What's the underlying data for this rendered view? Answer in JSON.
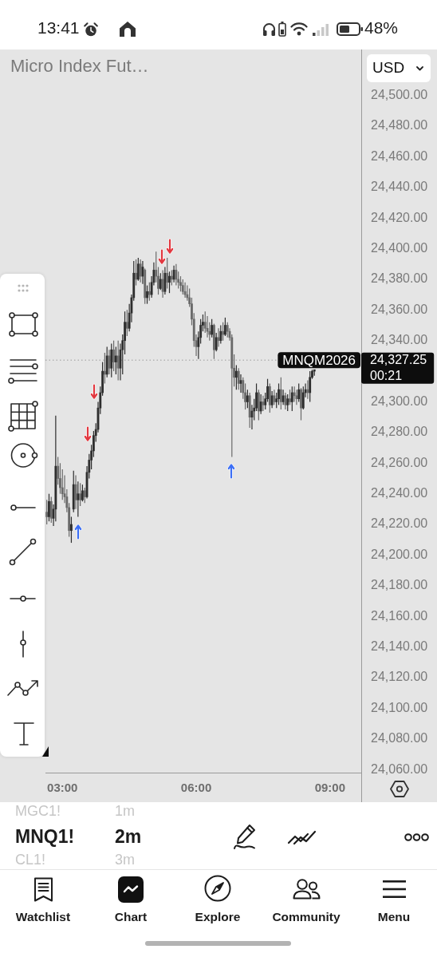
{
  "chart_data": {
    "type": "candlestick",
    "title": "Micro Index Fut…",
    "x": [
      2.65,
      2.7,
      2.75,
      2.8,
      2.85,
      2.9,
      2.95,
      3,
      3.05,
      3.1,
      3.15,
      3.2,
      3.25,
      3.3,
      3.35,
      3.4,
      3.45,
      3.5,
      3.55,
      3.6,
      3.65,
      3.7,
      3.75,
      3.8,
      3.85,
      3.9,
      3.95,
      4,
      4.05,
      4.1,
      4.15,
      4.2,
      4.25,
      4.3,
      4.35,
      4.4,
      4.45,
      4.5,
      4.55,
      4.6,
      4.65,
      4.7,
      4.75,
      4.8,
      4.85,
      4.9,
      4.95,
      5,
      5.05,
      5.1,
      5.15,
      5.2,
      5.25,
      5.3,
      5.35,
      5.4,
      5.45,
      5.5,
      5.55,
      5.6,
      5.65,
      5.7,
      5.75,
      5.8,
      5.85,
      5.9,
      5.95,
      6,
      6.05,
      6.1,
      6.15,
      6.2,
      6.25,
      6.3,
      6.35,
      6.4,
      6.45,
      6.5,
      6.55,
      6.6,
      6.65,
      6.7,
      6.75,
      6.8,
      6.85,
      6.9,
      6.95,
      7,
      7.05,
      7.1,
      7.15,
      7.2,
      7.25,
      7.3,
      7.35,
      7.4,
      7.45,
      7.5,
      7.55,
      7.6,
      7.65,
      7.7,
      7.75,
      7.8,
      7.85,
      7.9,
      7.95,
      8,
      8.05,
      8.1,
      8.15,
      8.2,
      8.25,
      8.3,
      8.35,
      8.4,
      8.45,
      8.5,
      8.55,
      8.6,
      8.65
    ],
    "ohlc": [
      [
        24228,
        24236,
        24220,
        24225
      ],
      [
        24225,
        24240,
        24222,
        24235
      ],
      [
        24235,
        24238,
        24221,
        24224
      ],
      [
        24224,
        24233,
        24219,
        24230
      ],
      [
        24230,
        24291,
        24222,
        24258
      ],
      [
        24258,
        24264,
        24246,
        24250
      ],
      [
        24250,
        24260,
        24240,
        24244
      ],
      [
        24244,
        24256,
        24236,
        24240
      ],
      [
        24240,
        24252,
        24234,
        24238
      ],
      [
        24238,
        24243,
        24228,
        24231
      ],
      [
        24231,
        24234,
        24212,
        24216
      ],
      [
        24216,
        24225,
        24208,
        24220
      ],
      [
        24230,
        24255,
        24228,
        24246
      ],
      [
        24246,
        24252,
        24230,
        24236
      ],
      [
        24236,
        24248,
        24225,
        24240
      ],
      [
        24240,
        24247,
        24232,
        24236
      ],
      [
        24236,
        24246,
        24235,
        24242
      ],
      [
        24242,
        24244,
        24234,
        24238
      ],
      [
        24238,
        24258,
        24237,
        24254
      ],
      [
        24254,
        24266,
        24250,
        24262
      ],
      [
        24262,
        24272,
        24256,
        24268
      ],
      [
        24268,
        24281,
        24264,
        24278
      ],
      [
        24278,
        24286,
        24274,
        24282
      ],
      [
        24282,
        24300,
        24280,
        24296
      ],
      [
        24296,
        24310,
        24292,
        24306
      ],
      [
        24306,
        24326,
        24304,
        24320
      ],
      [
        24320,
        24332,
        24312,
        24318
      ],
      [
        24318,
        24336,
        24316,
        24330
      ],
      [
        24330,
        24334,
        24318,
        24322
      ],
      [
        24322,
        24338,
        24316,
        24334
      ],
      [
        24334,
        24340,
        24320,
        24326
      ],
      [
        24326,
        24336,
        24318,
        24330
      ],
      [
        24330,
        24340,
        24314,
        24322
      ],
      [
        24322,
        24338,
        24314,
        24334
      ],
      [
        24334,
        24344,
        24318,
        24340
      ],
      [
        24340,
        24359,
        24331,
        24352
      ],
      [
        24352,
        24360,
        24343,
        24348
      ],
      [
        24348,
        24364,
        24346,
        24358
      ],
      [
        24358,
        24370,
        24352,
        24368
      ],
      [
        24368,
        24392,
        24366,
        24384
      ],
      [
        24384,
        24393,
        24376,
        24380
      ],
      [
        24380,
        24394,
        24379,
        24390
      ],
      [
        24390,
        24393,
        24378,
        24382
      ],
      [
        24382,
        24392,
        24377,
        24388
      ],
      [
        24386,
        24387,
        24364,
        24368
      ],
      [
        24368,
        24376,
        24364,
        24372
      ],
      [
        24372,
        24378,
        24366,
        24370
      ],
      [
        24370,
        24382,
        24368,
        24378
      ],
      [
        24378,
        24391,
        24376,
        24386
      ],
      [
        24386,
        24398,
        24378,
        24382
      ],
      [
        24382,
        24388,
        24370,
        24374
      ],
      [
        24374,
        24384,
        24373,
        24380
      ],
      [
        24380,
        24386,
        24368,
        24372
      ],
      [
        24372,
        24388,
        24370,
        24384
      ],
      [
        24384,
        24394,
        24374,
        24378
      ],
      [
        24378,
        24385,
        24371,
        24382
      ],
      [
        24382,
        24386,
        24376,
        24380
      ],
      [
        24380,
        24389,
        24378,
        24386
      ],
      [
        24386,
        24390,
        24376,
        24380
      ],
      [
        24380,
        24385,
        24374,
        24378
      ],
      [
        24378,
        24382,
        24372,
        24376
      ],
      [
        24376,
        24380,
        24370,
        24372
      ],
      [
        24372,
        24378,
        24368,
        24370
      ],
      [
        24370,
        24376,
        24366,
        24368
      ],
      [
        24368,
        24374,
        24362,
        24364
      ],
      [
        24364,
        24368,
        24350,
        24354
      ],
      [
        24354,
        24358,
        24336,
        24340
      ],
      [
        24340,
        24344,
        24330,
        24336
      ],
      [
        24336,
        24346,
        24328,
        24342
      ],
      [
        24342,
        24354,
        24338,
        24350
      ],
      [
        24350,
        24357,
        24346,
        24352
      ],
      [
        24352,
        24359,
        24345,
        24348
      ],
      [
        24348,
        24356,
        24342,
        24346
      ],
      [
        24346,
        24352,
        24340,
        24344
      ],
      [
        24344,
        24354,
        24342,
        24350
      ],
      [
        24350,
        24351,
        24328,
        24334
      ],
      [
        24334,
        24345,
        24333,
        24342
      ],
      [
        24342,
        24348,
        24336,
        24340
      ],
      [
        24340,
        24350,
        24338,
        24346
      ],
      [
        24346,
        24352,
        24340,
        24344
      ],
      [
        24344,
        24355,
        24343,
        24350
      ],
      [
        24350,
        24352,
        24342,
        24346
      ],
      [
        24346,
        24348,
        24340,
        24342
      ],
      [
        24342,
        24344,
        24264,
        24322
      ],
      [
        24322,
        24331,
        24310,
        24316
      ],
      [
        24316,
        24324,
        24308,
        24320
      ],
      [
        24320,
        24322,
        24308,
        24312
      ],
      [
        24312,
        24318,
        24306,
        24314
      ],
      [
        24314,
        24316,
        24302,
        24306
      ],
      [
        24306,
        24312,
        24295,
        24300
      ],
      [
        24300,
        24308,
        24296,
        24304
      ],
      [
        24304,
        24306,
        24283,
        24290
      ],
      [
        24290,
        24298,
        24282,
        24294
      ],
      [
        24294,
        24302,
        24288,
        24296
      ],
      [
        24296,
        24312,
        24294,
        24306
      ],
      [
        24306,
        24308,
        24288,
        24294
      ],
      [
        24294,
        24305,
        24292,
        24300
      ],
      [
        24300,
        24304,
        24294,
        24298
      ],
      [
        24298,
        24306,
        24295,
        24302
      ],
      [
        24302,
        24315,
        24300,
        24310
      ],
      [
        24310,
        24312,
        24293,
        24298
      ],
      [
        24298,
        24307,
        24296,
        24304
      ],
      [
        24304,
        24308,
        24298,
        24300
      ],
      [
        24300,
        24306,
        24296,
        24302
      ],
      [
        24302,
        24312,
        24298,
        24308
      ],
      [
        24308,
        24316,
        24295,
        24300
      ],
      [
        24300,
        24308,
        24298,
        24304
      ],
      [
        24304,
        24306,
        24295,
        24298
      ],
      [
        24298,
        24305,
        24294,
        24302
      ],
      [
        24302,
        24308,
        24298,
        24300
      ],
      [
        24300,
        24310,
        24294,
        24306
      ],
      [
        24306,
        24310,
        24300,
        24304
      ],
      [
        24304,
        24308,
        24298,
        24302
      ],
      [
        24302,
        24312,
        24300,
        24308
      ],
      [
        24308,
        24309,
        24288,
        24296
      ],
      [
        24296,
        24310,
        24295,
        24306
      ],
      [
        24306,
        24312,
        24303,
        24308
      ],
      [
        24308,
        24314,
        24302,
        24306
      ],
      [
        24306,
        24320,
        24300,
        24316
      ],
      [
        24316,
        24321,
        24315,
        24320
      ],
      [
        24320,
        24321,
        24317,
        24321
      ]
    ],
    "colors": [
      "#6a6a6a",
      "#2e2e2e",
      "#6a6a6a",
      "#2e2e2e",
      "#2e2e2e",
      "#6a6a6a",
      "#6a6a6a",
      "#6a6a6a",
      "#6a6a6a",
      "#6a6a6a",
      "#6a6a6a",
      "#2e2e2e",
      "#2e2e2e",
      "#6a6a6a",
      "#2e2e2e",
      "#6a6a6a",
      "#2e2e2e",
      "#6a6a6a",
      "#2e2e2e",
      "#2e2e2e",
      "#2e2e2e",
      "#2e2e2e",
      "#2e2e2e",
      "#2e2e2e",
      "#2e2e2e",
      "#2e2e2e",
      "#6a6a6a",
      "#2e2e2e",
      "#6a6a6a",
      "#2e2e2e",
      "#6a6a6a",
      "#2e2e2e",
      "#6a6a6a",
      "#2e2e2e",
      "#2e2e2e",
      "#2e2e2e",
      "#6a6a6a",
      "#2e2e2e",
      "#2e2e2e",
      "#2e2e2e",
      "#6a6a6a",
      "#2e2e2e",
      "#6a6a6a",
      "#2e2e2e",
      "#6a6a6a",
      "#2e2e2e",
      "#6a6a6a",
      "#2e2e2e",
      "#2e2e2e",
      "#6a6a6a",
      "#6a6a6a",
      "#2e2e2e",
      "#6a6a6a",
      "#2e2e2e",
      "#6a6a6a",
      "#2e2e2e",
      "#6a6a6a",
      "#2e2e2e",
      "#6a6a6a",
      "#6a6a6a",
      "#6a6a6a",
      "#6a6a6a",
      "#6a6a6a",
      "#6a6a6a",
      "#6a6a6a",
      "#6a6a6a",
      "#6a6a6a",
      "#6a6a6a",
      "#2e2e2e",
      "#2e2e2e",
      "#2e2e2e",
      "#6a6a6a",
      "#6a6a6a",
      "#6a6a6a",
      "#2e2e2e",
      "#6a6a6a",
      "#2e2e2e",
      "#6a6a6a",
      "#2e2e2e",
      "#6a6a6a",
      "#2e2e2e",
      "#6a6a6a",
      "#6a6a6a",
      "#6a6a6a",
      "#6a6a6a",
      "#2e2e2e",
      "#6a6a6a",
      "#2e2e2e",
      "#6a6a6a",
      "#6a6a6a",
      "#2e2e2e",
      "#6a6a6a",
      "#2e2e2e",
      "#2e2e2e",
      "#2e2e2e",
      "#6a6a6a",
      "#2e2e2e",
      "#6a6a6a",
      "#2e2e2e",
      "#2e2e2e",
      "#6a6a6a",
      "#2e2e2e",
      "#6a6a6a",
      "#2e2e2e",
      "#2e2e2e",
      "#6a6a6a",
      "#2e2e2e",
      "#6a6a6a",
      "#2e2e2e",
      "#6a6a6a",
      "#2e2e2e",
      "#6a6a6a",
      "#6a6a6a",
      "#2e2e2e",
      "#6a6a6a",
      "#2e2e2e",
      "#2e2e2e",
      "#6a6a6a",
      "#2e2e2e",
      "#2e2e2e",
      "#2e2e2e"
    ],
    "xlim": [
      2.62,
      9.7
    ],
    "xticks": [
      {
        "value": 3,
        "label": "03:00"
      },
      {
        "value": 6,
        "label": "06:00"
      },
      {
        "value": 9,
        "label": "09:00"
      }
    ],
    "ylim": [
      24058,
      24530
    ],
    "yticks": [
      {
        "value": 24060,
        "label": "24,060.00"
      },
      {
        "value": 24080,
        "label": "24,080.00"
      },
      {
        "value": 24100,
        "label": "24,100.00"
      },
      {
        "value": 24120,
        "label": "24,120.00"
      },
      {
        "value": 24140,
        "label": "24,140.00"
      },
      {
        "value": 24160,
        "label": "24,160.00"
      },
      {
        "value": 24180,
        "label": "24,180.00"
      },
      {
        "value": 24200,
        "label": "24,200.00"
      },
      {
        "value": 24220,
        "label": "24,220.00"
      },
      {
        "value": 24240,
        "label": "24,240.00"
      },
      {
        "value": 24260,
        "label": "24,260.00"
      },
      {
        "value": 24280,
        "label": "24,280.00"
      },
      {
        "value": 24300,
        "label": "24,300.00"
      },
      {
        "value": 24340,
        "label": "24,340.00"
      },
      {
        "value": 24360,
        "label": "24,360.00"
      },
      {
        "value": 24380,
        "label": "24,380.00"
      },
      {
        "value": 24400,
        "label": "24,400.00"
      },
      {
        "value": 24420,
        "label": "24,420.00"
      },
      {
        "value": 24440,
        "label": "24,440.00"
      },
      {
        "value": 24460,
        "label": "24,460.00"
      },
      {
        "value": 24480,
        "label": "24,480.00"
      },
      {
        "value": 24500,
        "label": "24,500.00"
      }
    ],
    "ref_lines": [
      {
        "axis": "y",
        "value": 24327.25,
        "label": "MNQM2026",
        "color": "#9a9a9a",
        "line_style": "dotted"
      }
    ],
    "annotations": [
      "24,327.25",
      "00:21",
      "13:41",
      "48%",
      "USD",
      "MGC1!",
      "1m",
      "MNQ1!",
      "2m",
      "CL1!",
      "3m",
      "Watchlist",
      "Chart",
      "Explore",
      "Community",
      "Menu"
    ]
  }
}
